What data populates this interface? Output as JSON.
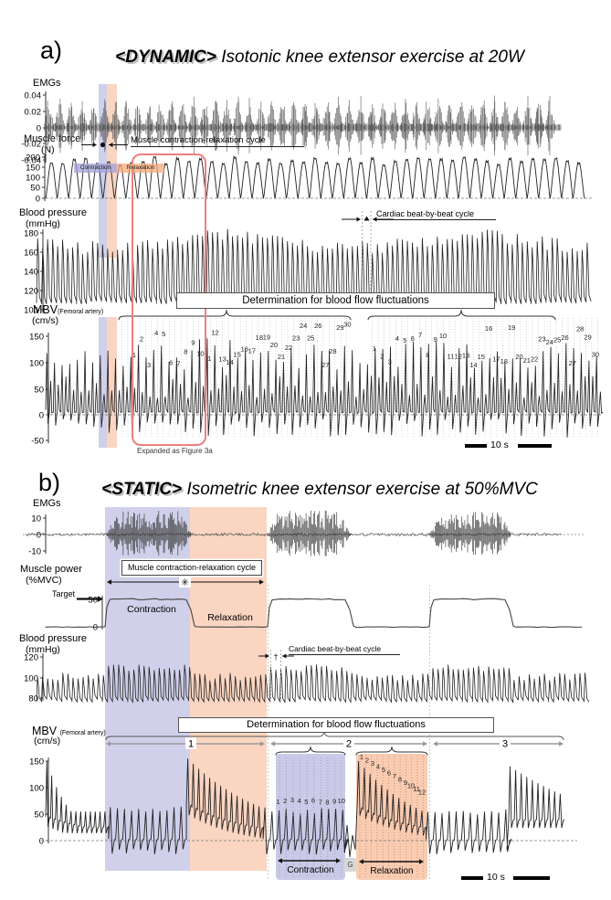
{
  "ui": {
    "panel_a": {
      "label": "a)",
      "title_tag": "<DYNAMIC>",
      "title_text": "Isotonic knee extensor exercise at 20W",
      "emg_label": "EMGs",
      "emg_ticks": [
        "0.04",
        "0.02",
        "0",
        "-0.02",
        "-0.04"
      ],
      "strip_contraction": "Contraction",
      "strip_relaxation": "Relaxation",
      "force_label": "Muscle force",
      "force_unit": "(N)",
      "force_ticks": [
        "200",
        "150",
        "100",
        "50",
        "0"
      ],
      "force_cycle_annotation": "Muscle contraction-relaxation cycle",
      "bp_label": "Blood pressure",
      "bp_unit": "(mmHg)",
      "bp_ticks": [
        "180",
        "160",
        "140",
        "120",
        "100"
      ],
      "cardiac_annotation": "Cardiac beat-by-beat cycle",
      "mbv_label": "MBV",
      "mbv_sub": "(Femoral artery)",
      "mbv_unit": "(cm/s)",
      "mbv_ticks": [
        "150",
        "100",
        "50",
        "0",
        "-50"
      ],
      "determination": "Determination for blood flow fluctuations",
      "expanded_note": "Expanded as Figure 3a",
      "scale_label": "10 s"
    },
    "panel_b": {
      "label": "b)",
      "title_tag": "<STATIC>",
      "title_text": "Isometric knee extensor exercise at 50%MVC",
      "emg_label": "EMGs",
      "emg_ticks": [
        "10",
        "0",
        "-10"
      ],
      "power_label": "Muscle power",
      "power_unit": "(%MVC)",
      "power_ticks": [
        "50",
        "0"
      ],
      "target_label": "Target",
      "contraction_label": "Contraction",
      "relaxation_label": "Relaxation",
      "cycle_annotation": "Muscle contraction-relaxation cycle",
      "cycle_symbol": "✳",
      "bp_label": "Blood pressure",
      "bp_unit": "(mmHg)",
      "bp_ticks": [
        "120",
        "100",
        "80"
      ],
      "cardiac_annotation": "Cardiac beat-by-beat cycle",
      "cardiac_symbol": "†",
      "mbv_label": "MBV",
      "mbv_sub": "(Femoral artery)",
      "mbv_unit": "(cm/s)",
      "mbv_ticks": [
        "150",
        "100",
        "50",
        "0"
      ],
      "determination": "Determination for blood flow fluctuations",
      "segments": [
        "1",
        "2",
        "3"
      ],
      "box_contraction_label": "Contraction",
      "box_relaxation_label": "Relaxation",
      "g_label": "G",
      "scale_label": "10 s"
    },
    "colors": {
      "contraction_shade": "#9090ce",
      "relaxation_shade": "#f29664",
      "highlight_rect": "#ef7f7f",
      "trace": "#222222"
    }
  },
  "chart_data": {
    "panels": [
      {
        "panel": "a",
        "title": "<DYNAMIC> Isotonic knee extensor exercise at 20W",
        "x_scale_bar": "10 s",
        "traces": [
          {
            "signal": "EMGs",
            "type": "line",
            "yticks": [
              0.04,
              0.02,
              0,
              -0.02,
              -0.04
            ],
            "ylim": [
              -0.05,
              0.05
            ],
            "pattern": "rhythmic EMG bursts, one burst per contraction cycle",
            "bursts": 46
          },
          {
            "signal": "Muscle force",
            "type": "line",
            "units": "N",
            "yticks": [
              200,
              150,
              100,
              50,
              0
            ],
            "ylim": [
              0,
              220
            ],
            "pattern": "repeated contraction peaks returning to 0 N baseline",
            "cycles": 47,
            "peak_range_N": [
              150,
              195
            ]
          },
          {
            "signal": "Blood pressure",
            "type": "line",
            "units": "mmHg",
            "yticks": [
              180,
              160,
              140,
              120,
              100
            ],
            "ylim": [
              95,
              185
            ],
            "pattern": "beat-by-beat arterial pressure waves",
            "beats": 110,
            "systolic_range": [
              150,
              180
            ],
            "diastolic_range": [
              100,
              115
            ]
          },
          {
            "signal": "MBV (Femoral artery)",
            "type": "line",
            "units": "cm/s",
            "yticks": [
              150,
              100,
              50,
              0,
              -50
            ],
            "ylim": [
              -55,
              165
            ],
            "pattern": "pulsatile blood velocity, -45 to 150 cm/s, two analysis segments of numbered beats",
            "numbered_beats_per_segment": [
              30,
              30
            ]
          }
        ],
        "annotations": [
          "Muscle contraction-relaxation cycle",
          "Cardiac beat-by-beat cycle",
          "Determination for blood flow fluctuations",
          "Expanded as Figure 3a"
        ]
      },
      {
        "panel": "b",
        "title": "<STATIC> Isometric knee extensor exercise at 50%MVC",
        "x_scale_bar": "10 s",
        "traces": [
          {
            "signal": "EMGs",
            "type": "line",
            "yticks": [
              10,
              0,
              -10
            ],
            "ylim": [
              -15,
              15
            ],
            "pattern": "EMG bursts during three contraction phases, quiet during relaxation",
            "bursts": 3
          },
          {
            "signal": "Muscle power",
            "type": "line",
            "units": "%MVC",
            "yticks": [
              50,
              0
            ],
            "ylim": [
              0,
              60
            ],
            "pattern": "square-wave plateaus at 50%MVC target for three contractions",
            "target_level": 50,
            "contractions": 3
          },
          {
            "signal": "Blood pressure",
            "type": "line",
            "units": "mmHg",
            "yticks": [
              120,
              100,
              80
            ],
            "ylim": [
              72,
              122
            ],
            "pattern": "beat-by-beat pressure ~78/112 mmHg",
            "beats": 108
          },
          {
            "signal": "MBV (Femoral artery)",
            "type": "line",
            "units": "cm/s",
            "yticks": [
              150,
              100,
              50,
              0
            ],
            "ylim": [
              -35,
              160
            ],
            "pattern": "suppressed oscillation around 0 during contraction; decaying hyperemic peaks ~150 cm/s during relaxation",
            "numbered_beats": {
              "contraction": 10,
              "relaxation": 12
            },
            "segments": [
              "1",
              "2",
              "3"
            ]
          }
        ]
      }
    ]
  }
}
